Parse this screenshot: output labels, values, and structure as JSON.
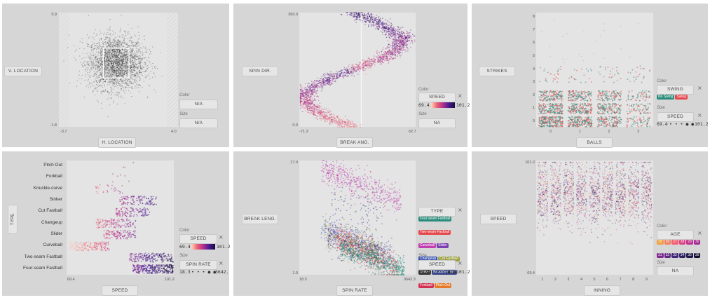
{
  "colors": {
    "swing": {
      "No Swing": "#2a8c7c",
      "Swing": "#e5484d"
    },
    "type": {
      "Four-seam Fastball": "#2a8c7c",
      "Two-seam Fastball": "#e5484d",
      "Curveball": "#c040b0",
      "Slider": "#7a3fb0",
      "Changeup": "#3b55b0",
      "Cut Fastball": "#9aa040",
      "Sinker": "#3b3b3b",
      "Knuckle-curve": "#3b4a8c",
      "Forkball": "#d23050",
      "Pitch Out": "#e57b2a"
    },
    "age": [
      "#f0a040",
      "#f08060",
      "#f06070",
      "#e04080",
      "#c03090",
      "#a02890",
      "#802890",
      "#602880",
      "#402878",
      "#302060",
      "#201848",
      "#181030"
    ]
  },
  "common": {
    "color_caption": "Color",
    "size_caption": "Size",
    "close_icon": "×",
    "size_dots": "• • • ● ●"
  },
  "panels": [
    {
      "id": "p1",
      "x_axis_label": "H. LOCATION",
      "y_axis_label": "V. LOCATION",
      "color_value": "N/A",
      "size_value": "N/A",
      "chart_data": {
        "type": "scatter",
        "x_field": "H. LOCATION",
        "y_field": "V. LOCATION",
        "xlim": [
          -3.7,
          4.0
        ],
        "ylim": [
          -1.8,
          5.9
        ],
        "x_ticks": [
          "-3.7",
          "4.0"
        ],
        "y_ticks": [
          "5.9",
          "-1.8"
        ],
        "point_color": "#333333",
        "approx_points": 8000,
        "center": [
          0.0,
          2.5
        ],
        "spread": [
          0.9,
          0.9
        ],
        "strike_zone": {
          "x": [
            -0.83,
            0.83
          ],
          "y": [
            1.5,
            3.5
          ]
        }
      }
    },
    {
      "id": "p2",
      "x_axis_label": "BREAK ANG.",
      "y_axis_label": "SPIN DIR.",
      "color_field": "SPEED",
      "color_min": "69.4",
      "color_max": "101.2",
      "size_value": "NA",
      "chart_data": {
        "type": "scatter",
        "x_field": "BREAK ANG.",
        "y_field": "SPIN DIR.",
        "xlim": [
          -71.3,
          62.7
        ],
        "ylim": [
          0,
          360
        ],
        "x_ticks": [
          "-71.3",
          "62.7"
        ],
        "y_ticks": [
          "360.0",
          "0.0"
        ],
        "color_by": "SPEED",
        "color_scale": "magma",
        "color_range": [
          69.4,
          101.2
        ],
        "shape": "mirrored S-curve",
        "approx_points": 6000
      }
    },
    {
      "id": "p3",
      "x_axis_label": "BALLS",
      "y_axis_label": "STRIKES",
      "color_field": "SWING",
      "legend": [
        "No Swing",
        "Swing"
      ],
      "size_field": "SPEED",
      "size_min": "69.4",
      "size_max": "101.2",
      "chart_data": {
        "type": "scatter",
        "x_field": "BALLS",
        "y_field": "STRIKES",
        "x_categories": [
          "0",
          "1",
          "2",
          "3"
        ],
        "y_ticks": [
          "0",
          "1",
          "2",
          "3",
          "4",
          "5",
          "6",
          "7",
          "8"
        ],
        "xlim": [
          -0.5,
          3.5
        ],
        "ylim": [
          -0.4,
          8.4
        ],
        "jitter": true,
        "color_by": "SWING",
        "series": [
          {
            "name": "No Swing"
          },
          {
            "name": "Swing"
          }
        ]
      }
    },
    {
      "id": "p4",
      "x_axis_label": "SPEED",
      "y_axis_label": "TYPE",
      "color_field": "SPEED",
      "color_min": "69.4",
      "color_max": "101.2",
      "size_field": "SPIN RATE",
      "size_min": "18.3",
      "size_max": "3642.",
      "chart_data": {
        "type": "scatter",
        "x_field": "SPEED",
        "y_field": "TYPE",
        "xlim": [
          69.4,
          101.2
        ],
        "x_ticks": [
          "69.4",
          "101.2"
        ],
        "categories": [
          "Pitch Out",
          "Forkball",
          "Knuckle-curve",
          "Sinker",
          "Cut Fastball",
          "Changeup",
          "Slider",
          "Curveball",
          "Two-seam Fastball",
          "Four-seam Fastball"
        ],
        "ranges": [
          [
            86,
            90
          ],
          [
            83,
            88
          ],
          [
            78,
            86
          ],
          [
            85,
            96
          ],
          [
            84,
            94
          ],
          [
            78,
            90
          ],
          [
            80,
            90
          ],
          [
            70,
            82
          ],
          [
            88,
            101
          ],
          [
            89,
            101
          ]
        ],
        "density": [
          3,
          6,
          30,
          120,
          120,
          130,
          130,
          170,
          200,
          320
        ],
        "color_by": "SPEED",
        "color_scale": "magma"
      }
    },
    {
      "id": "p5",
      "x_axis_label": "SPIN RATE",
      "y_axis_label": "BREAK LENG.",
      "color_field": "TYPE",
      "legend": [
        "Four-seam Fastball",
        "Two-seam Fastball",
        "Curveball",
        "Slider",
        "Changeup",
        "Cut Fastball",
        "Sinker",
        "Knuckle-curve",
        "Forkball",
        "Pitch Out"
      ],
      "size_field": "SPEED",
      "size_min": "69.4",
      "size_max": "101.2",
      "chart_data": {
        "type": "scatter",
        "x_field": "SPIN RATE",
        "y_field": "BREAK LENG.",
        "xlim": [
          18.3,
          3642.3
        ],
        "ylim": [
          1.0,
          17.0
        ],
        "x_ticks": [
          "18.3",
          "3642.3"
        ],
        "y_ticks": [
          "17.0",
          "1.0"
        ],
        "color_by": "TYPE",
        "approx_points": 7000
      }
    },
    {
      "id": "p6",
      "x_axis_label": "INNING",
      "y_axis_label": "SPEED",
      "color_field": "AGE",
      "age_legend": [
        "25",
        "26",
        "27",
        "28",
        "29",
        "30",
        "31",
        "32",
        "33",
        "34",
        "35",
        "36",
        "37"
      ],
      "size_value": "NA",
      "chart_data": {
        "type": "scatter",
        "x_field": "INNING",
        "y_field": "SPEED",
        "x_categories": [
          "1",
          "2",
          "3",
          "4",
          "5",
          "6",
          "7",
          "8",
          "9"
        ],
        "ylim": [
          69.4,
          101.2
        ],
        "y_ticks": [
          "101.2",
          "69.4"
        ],
        "jitter": true,
        "color_by": "AGE"
      }
    }
  ]
}
